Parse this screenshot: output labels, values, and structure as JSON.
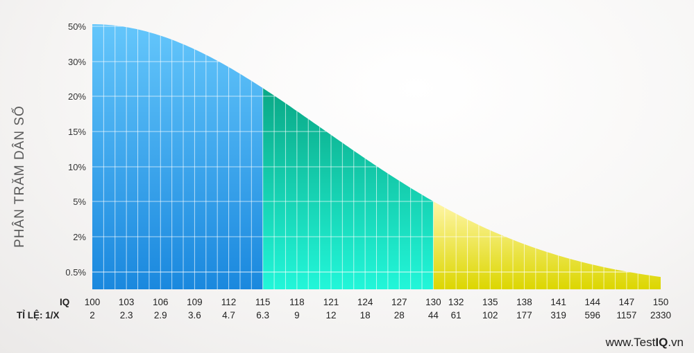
{
  "chart_data": {
    "type": "area",
    "ylabel": "PHÂN TRĂM DÂN SỐ",
    "y_ticks": [
      "50%",
      "30%",
      "20%",
      "15%",
      "10%",
      "5%",
      "2%",
      "0.5%"
    ],
    "iq_row_label": "IQ",
    "ratio_row_label": "TỈ LỆ: 1/X",
    "points": [
      {
        "iq": 100,
        "ratio": "2"
      },
      {
        "iq": 103,
        "ratio": "2.3"
      },
      {
        "iq": 106,
        "ratio": "2.9"
      },
      {
        "iq": 109,
        "ratio": "3.6"
      },
      {
        "iq": 112,
        "ratio": "4.7"
      },
      {
        "iq": 115,
        "ratio": "6.3"
      },
      {
        "iq": 118,
        "ratio": "9"
      },
      {
        "iq": 121,
        "ratio": "12"
      },
      {
        "iq": 124,
        "ratio": "18"
      },
      {
        "iq": 127,
        "ratio": "28"
      },
      {
        "iq": 130,
        "ratio": "44"
      },
      {
        "iq": 132,
        "ratio": "61"
      },
      {
        "iq": 135,
        "ratio": "102"
      },
      {
        "iq": 138,
        "ratio": "177"
      },
      {
        "iq": 141,
        "ratio": "319"
      },
      {
        "iq": 144,
        "ratio": "596"
      },
      {
        "iq": 147,
        "ratio": "1157"
      },
      {
        "iq": 150,
        "ratio": "2330"
      }
    ],
    "segments": [
      {
        "from_iq": 100,
        "to_iq": 115,
        "color_top": "#64c6fb",
        "color_bottom": "#1a88de"
      },
      {
        "from_iq": 115,
        "to_iq": 130,
        "color_top": "#0aa886",
        "color_bottom": "#22f6d9"
      },
      {
        "from_iq": 130,
        "to_iq": 150,
        "color_top": "#fff6a8",
        "color_bottom": "#dcd600"
      }
    ],
    "grid": true
  },
  "watermark": {
    "prefix": "www.Test",
    "bold": "IQ",
    "suffix": ".vn"
  }
}
